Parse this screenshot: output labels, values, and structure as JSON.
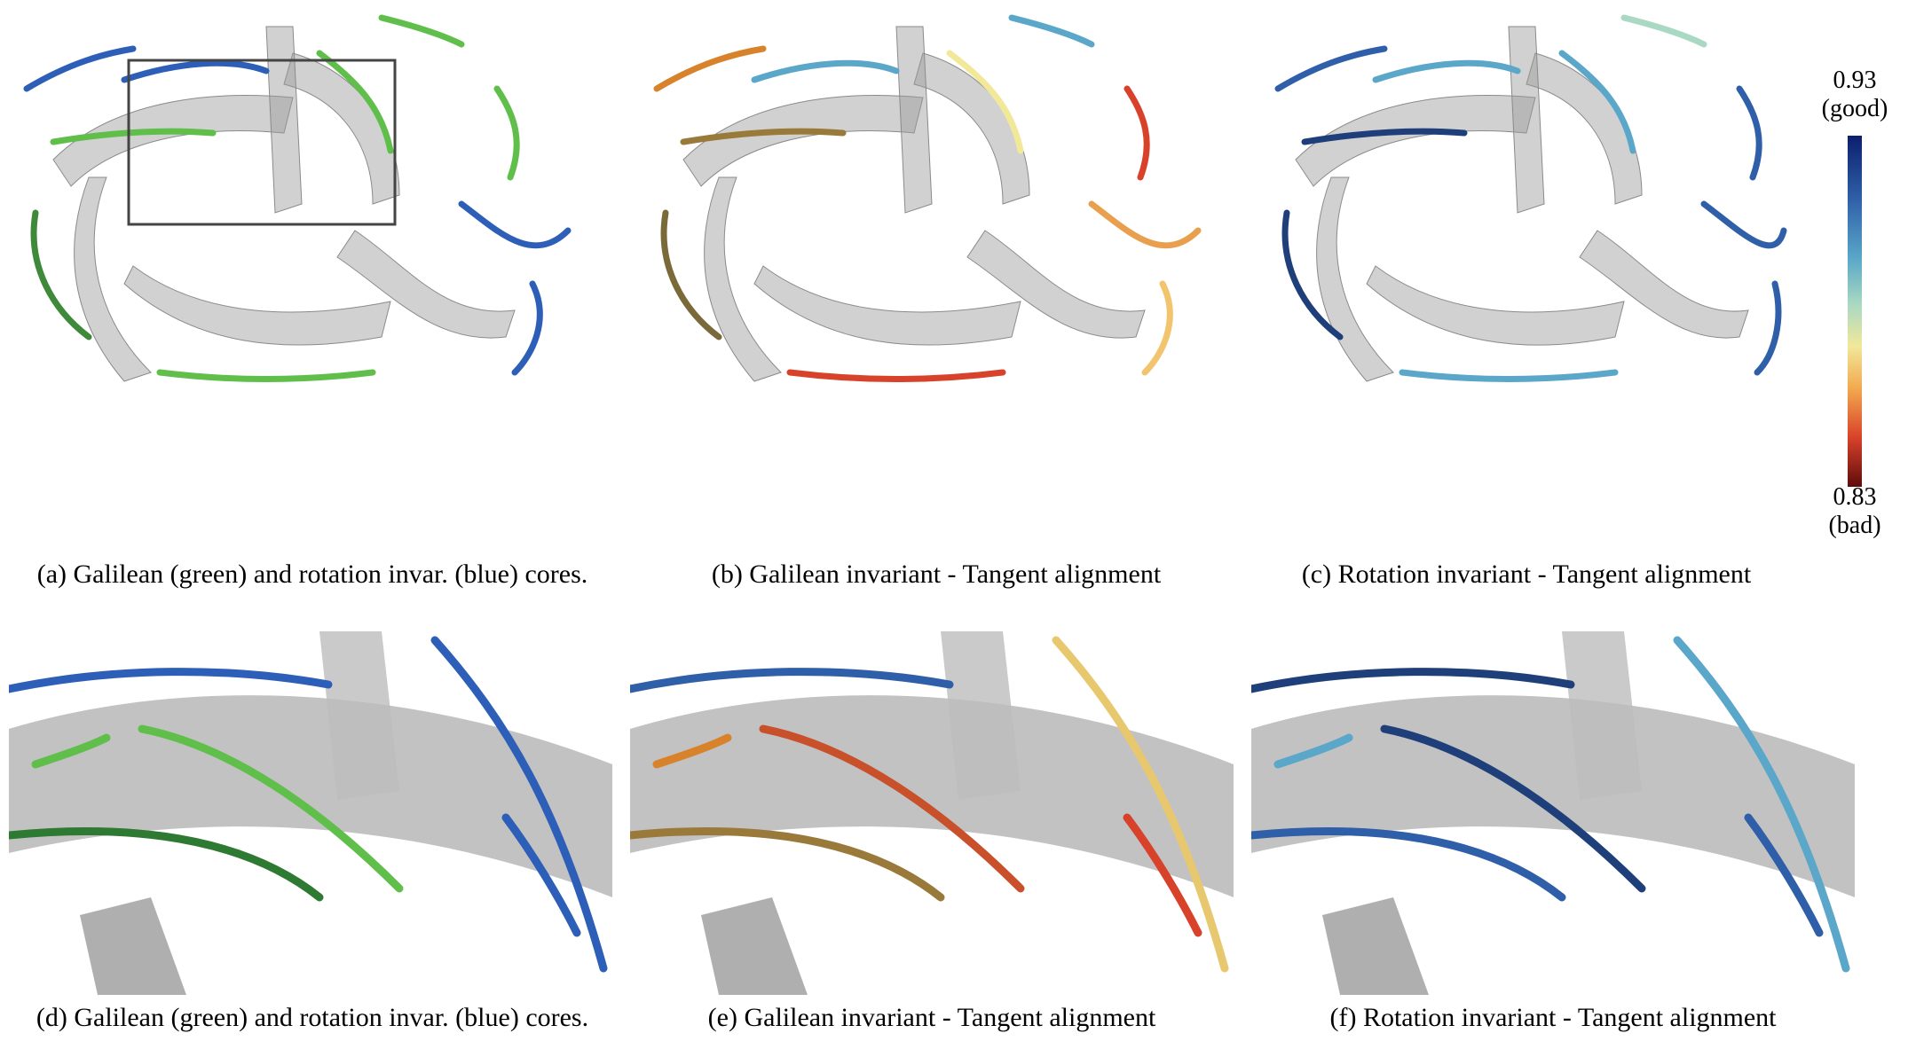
{
  "captions": {
    "a": "(a)  Galilean (green) and rotation invar. (blue) cores.",
    "b": "(b)  Galilean invariant - Tangent alignment",
    "c": "(c)  Rotation invariant - Tangent alignment",
    "d": "(d)  Galilean (green) and rotation invar. (blue) cores.",
    "e": "(e)  Galilean invariant - Tangent alignment",
    "f": "(f)  Rotation invariant - Tangent alignment"
  },
  "colorbar": {
    "max_value": "0.93",
    "max_label": "(good)",
    "min_value": "0.83",
    "min_label": "(bad)"
  },
  "colors": {
    "blade": "#9a9a9a",
    "green_core": "#5fbf4a",
    "blue_core": "#2d5fb8",
    "inset_frame": "#444444"
  }
}
